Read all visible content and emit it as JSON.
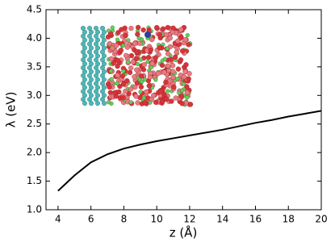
{
  "chart_data": {
    "type": "line",
    "xlabel": "z (Å)",
    "ylabel": "λ (eV)",
    "x": [
      4,
      5,
      6,
      7,
      8,
      9,
      10,
      11,
      12,
      13,
      14,
      15,
      16,
      17,
      18,
      19,
      20
    ],
    "series": [
      {
        "color": "#000000",
        "values": [
          1.33,
          1.6,
          1.83,
          1.97,
          2.07,
          2.14,
          2.2,
          2.25,
          2.3,
          2.35,
          2.4,
          2.46,
          2.52,
          2.57,
          2.63,
          2.68,
          2.73
        ]
      }
    ],
    "xlim": [
      3.27,
      20
    ],
    "ylim": [
      1.0,
      4.5
    ],
    "xticks": [
      4,
      6,
      8,
      10,
      12,
      14,
      16,
      18,
      20
    ],
    "yticks": [
      {
        "value": 1.0,
        "label": "1.0"
      },
      1.5,
      {
        "value": 2.0,
        "label": "2.0"
      },
      2.5,
      {
        "value": 3.0,
        "label": "3.0"
      },
      3.5,
      {
        "value": 4.0,
        "label": "4.0"
      },
      4.5
    ],
    "grid": false
  }
}
